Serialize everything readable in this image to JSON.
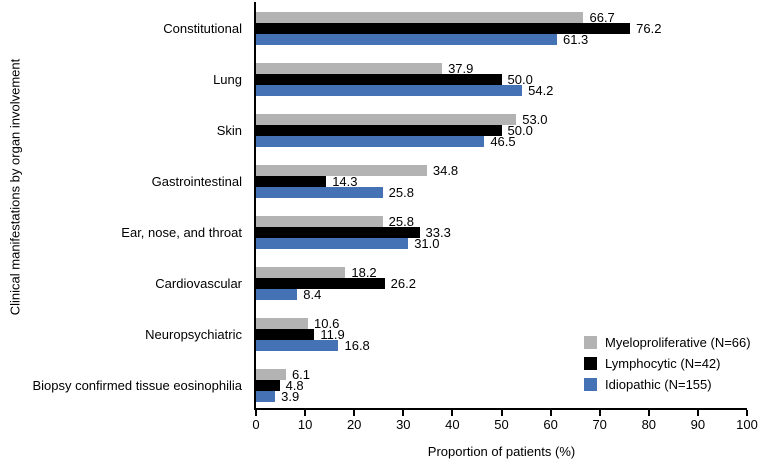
{
  "chart_data": {
    "type": "bar",
    "orientation": "horizontal",
    "title": "",
    "xlabel": "Proportion of patients (%)",
    "ylabel": "Clinical manifestations by organ involvement",
    "xlim": [
      0,
      100
    ],
    "xticks": [
      0,
      10,
      20,
      30,
      40,
      50,
      60,
      70,
      80,
      90,
      100
    ],
    "grid": false,
    "legend_position": "inside-lower-right",
    "value_label_decimals": 1,
    "categories": [
      "Constitutional",
      "Lung",
      "Skin",
      "Gastrointestinal",
      "Ear, nose, and throat",
      "Cardiovascular",
      "Neuropsychiatric",
      "Biopsy confirmed tissue eosinophilia"
    ],
    "series": [
      {
        "name": "Myeloproliferative (N=66)",
        "color": "#b3b3b3",
        "values": [
          66.7,
          37.9,
          53.0,
          34.8,
          25.8,
          18.2,
          10.6,
          6.1
        ]
      },
      {
        "name": "Lymphocytic (N=42)",
        "color": "#000000",
        "values": [
          76.2,
          50.0,
          50.0,
          14.3,
          33.3,
          26.2,
          11.9,
          4.8
        ]
      },
      {
        "name": "Idiopathic (N=155)",
        "color": "#4472b4",
        "values": [
          61.3,
          54.2,
          46.5,
          25.8,
          31.0,
          8.4,
          16.8,
          3.9
        ]
      }
    ]
  }
}
